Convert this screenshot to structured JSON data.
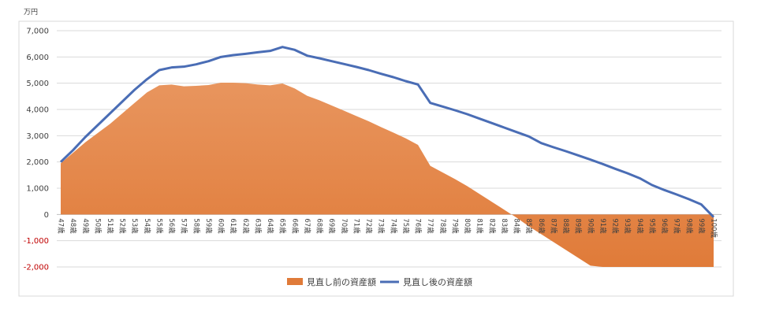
{
  "chart_data": {
    "type": "area+line",
    "unit_label": "万円",
    "ylim": [
      -2000,
      7000
    ],
    "yticks": [
      {
        "value": 7000,
        "label": "7,000"
      },
      {
        "value": 6000,
        "label": "6,000"
      },
      {
        "value": 5000,
        "label": "5,000"
      },
      {
        "value": 4000,
        "label": "4,000"
      },
      {
        "value": 3000,
        "label": "3,000"
      },
      {
        "value": 2000,
        "label": "2,000"
      },
      {
        "value": 1000,
        "label": "1,000"
      },
      {
        "value": 0,
        "label": "0"
      },
      {
        "value": -1000,
        "label": "-1,000"
      },
      {
        "value": -2000,
        "label": "-2,000"
      }
    ],
    "categories": [
      "47歳",
      "48歳",
      "49歳",
      "50歳",
      "51歳",
      "52歳",
      "53歳",
      "54歳",
      "55歳",
      "56歳",
      "57歳",
      "58歳",
      "59歳",
      "60歳",
      "61歳",
      "62歳",
      "63歳",
      "64歳",
      "65歳",
      "66歳",
      "67歳",
      "68歳",
      "69歳",
      "70歳",
      "71歳",
      "72歳",
      "73歳",
      "74歳",
      "75歳",
      "76歳",
      "77歳",
      "78歳",
      "79歳",
      "80歳",
      "81歳",
      "82歳",
      "83歳",
      "84歳",
      "85歳",
      "86歳",
      "87歳",
      "88歳",
      "89歳",
      "90歳",
      "91歳",
      "92歳",
      "93歳",
      "94歳",
      "95歳",
      "96歳",
      "97歳",
      "98歳",
      "99歳",
      "100歳"
    ],
    "series": [
      {
        "name": "見直し前の資産額",
        "kind": "area",
        "color": "#e07b39",
        "values": [
          1950,
          2350,
          2750,
          3100,
          3450,
          3850,
          4250,
          4650,
          4920,
          4950,
          4880,
          4900,
          4930,
          5020,
          5020,
          5000,
          4950,
          4920,
          4990,
          4800,
          4520,
          4350,
          4150,
          3950,
          3750,
          3550,
          3330,
          3120,
          2900,
          2650,
          1850,
          1600,
          1350,
          1080,
          780,
          480,
          180,
          -120,
          -450,
          -750,
          -1050,
          -1350,
          -1650,
          -1950,
          -2000,
          -2000,
          -2000,
          -2000,
          -2000,
          -2000,
          -2000,
          -2000,
          -2000,
          -2000
        ]
      },
      {
        "name": "見直し後の資産額",
        "kind": "line",
        "color": "#4a6db5",
        "values": [
          2000,
          2450,
          2950,
          3400,
          3850,
          4300,
          4750,
          5150,
          5500,
          5600,
          5630,
          5720,
          5840,
          6000,
          6070,
          6120,
          6180,
          6230,
          6380,
          6270,
          6050,
          5950,
          5840,
          5730,
          5620,
          5500,
          5360,
          5230,
          5080,
          4950,
          4250,
          4110,
          3970,
          3820,
          3650,
          3480,
          3310,
          3140,
          2970,
          2720,
          2560,
          2410,
          2250,
          2090,
          1920,
          1740,
          1570,
          1380,
          1120,
          930,
          760,
          580,
          380,
          -100
        ]
      }
    ]
  }
}
